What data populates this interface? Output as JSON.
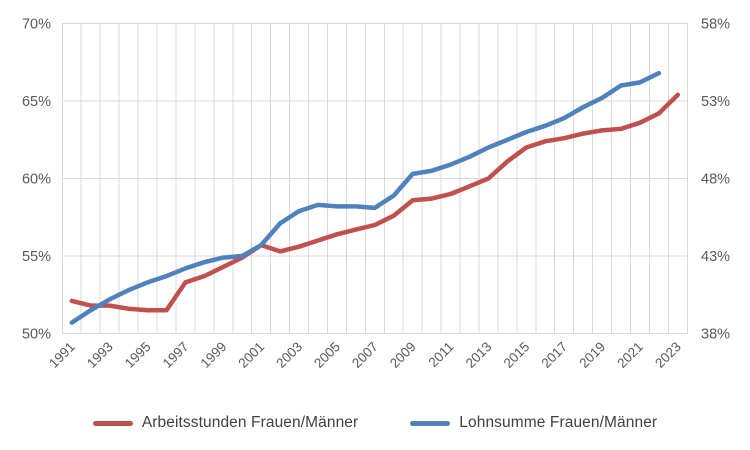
{
  "chart_data": {
    "type": "line",
    "x": [
      1991,
      1992,
      1993,
      1994,
      1995,
      1996,
      1997,
      1998,
      1999,
      2000,
      2001,
      2002,
      2003,
      2004,
      2005,
      2006,
      2007,
      2008,
      2009,
      2010,
      2011,
      2012,
      2013,
      2014,
      2015,
      2016,
      2017,
      2018,
      2019,
      2020,
      2021,
      2022,
      2023
    ],
    "x_tick_labels": [
      "1991",
      "1993",
      "1995",
      "1997",
      "1999",
      "2001",
      "2003",
      "2005",
      "2007",
      "2009",
      "2011",
      "2013",
      "2015",
      "2017",
      "2019",
      "2021",
      "2023"
    ],
    "left_axis": {
      "min": 50,
      "max": 70,
      "tick_values": [
        50,
        55,
        60,
        65,
        70
      ],
      "tick_labels": [
        "50%",
        "55%",
        "60%",
        "65%",
        "70%"
      ]
    },
    "right_axis": {
      "min": 38,
      "max": 58,
      "tick_values": [
        38,
        43,
        48,
        53,
        58
      ],
      "tick_labels": [
        "38%",
        "43%",
        "48%",
        "53%",
        "58%"
      ]
    },
    "series": [
      {
        "name": "Arbeitsstunden Frauen/Männer",
        "axis": "left",
        "color": "#C0504D",
        "values": [
          52.1,
          51.8,
          51.8,
          51.6,
          51.5,
          51.5,
          53.3,
          53.7,
          54.3,
          54.9,
          55.7,
          55.3,
          55.6,
          56.0,
          56.4,
          56.7,
          57.0,
          57.6,
          58.6,
          58.7,
          59.0,
          59.5,
          60.0,
          61.1,
          62.0,
          62.4,
          62.6,
          62.9,
          63.1,
          63.2,
          63.6,
          64.2,
          65.4
        ]
      },
      {
        "name": "Lohnsumme Frauen/Männer",
        "axis": "right",
        "color": "#4F81BD",
        "values": [
          38.7,
          39.5,
          40.2,
          40.8,
          41.3,
          41.7,
          42.2,
          42.6,
          42.9,
          43.0,
          43.7,
          45.1,
          45.9,
          46.3,
          46.2,
          46.2,
          46.1,
          46.9,
          48.3,
          48.5,
          48.9,
          49.4,
          50.0,
          50.5,
          51.0,
          51.4,
          51.9,
          52.6,
          53.2,
          54.0,
          54.2,
          54.8,
          null
        ]
      }
    ],
    "grid_color": "#D9D9D9",
    "tick_text_color": "#595959",
    "legend_text_color": "#404040",
    "legend_position": "bottom",
    "grid": true
  }
}
